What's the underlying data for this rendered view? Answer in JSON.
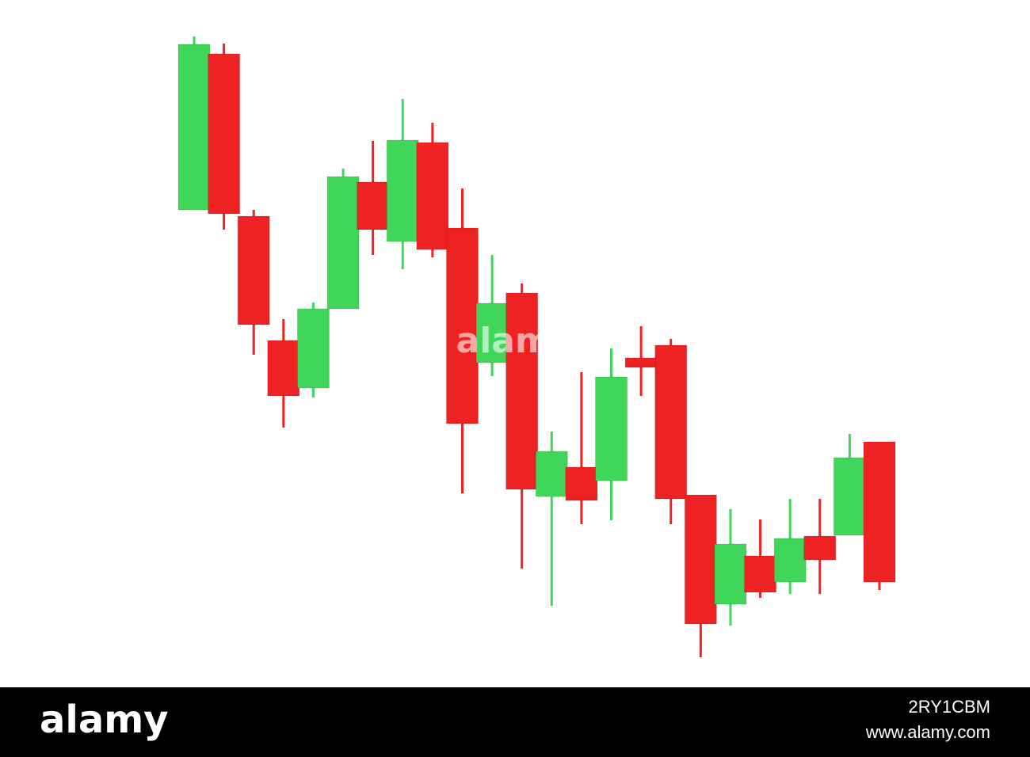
{
  "chart_data": {
    "type": "candlestick",
    "ylim": [
      0,
      87
    ],
    "up_color": "#3fd65a",
    "down_color": "#ee2222",
    "open": [
      60.5,
      80.2,
      59.7,
      44,
      38,
      48,
      64,
      56.5,
      69,
      58.2,
      41.2,
      50,
      24.3,
      28,
      26.3,
      41.8,
      43.4,
      24.5,
      10.7,
      16.8,
      13.5,
      19.3,
      19.4,
      31.2
    ],
    "high": [
      82.4,
      81.5,
      60.5,
      46.7,
      48.8,
      65.7,
      69.2,
      74.5,
      71.5,
      63.2,
      54.8,
      51.2,
      32.5,
      40,
      43,
      45.8,
      44.2,
      24.5,
      22.7,
      21.4,
      24,
      24,
      32.2,
      31.2
    ],
    "low": [
      60.5,
      58,
      42.2,
      33,
      36.8,
      48,
      54.8,
      53,
      54.5,
      24.7,
      39.5,
      15.2,
      10.5,
      20.8,
      21.3,
      37,
      20.8,
      4,
      8,
      11.5,
      12,
      12,
      19.4,
      12.5
    ],
    "close": [
      81.4,
      60,
      46,
      37,
      48,
      64.7,
      58,
      69.3,
      55.5,
      33.5,
      48.7,
      25.2,
      30,
      23.8,
      39.4,
      40.6,
      24,
      8.2,
      18.3,
      12.2,
      19,
      16.3,
      29.2,
      13.5
    ]
  },
  "watermark": {
    "center": "alamy",
    "brand": "alamy",
    "image_id": "2RY1CBM",
    "site": "www.alamy.com"
  }
}
